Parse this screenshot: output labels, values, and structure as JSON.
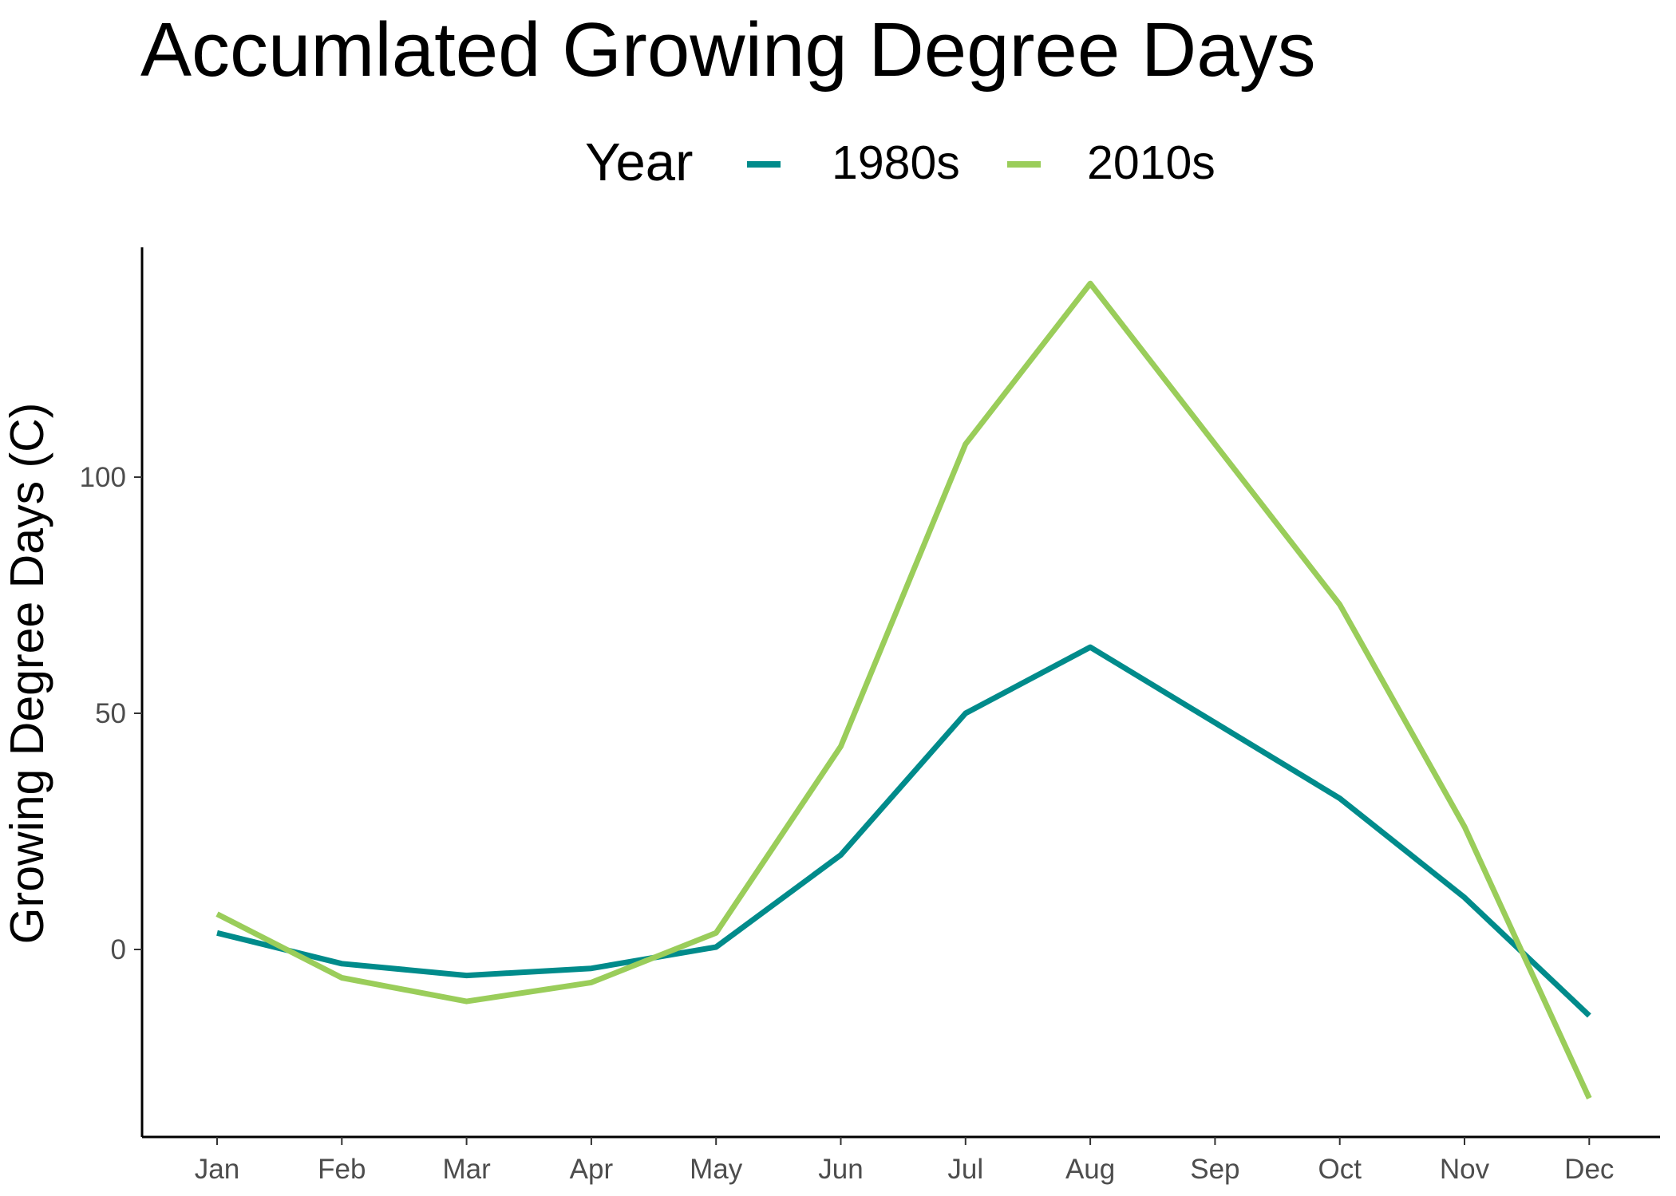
{
  "chart_data": {
    "type": "line",
    "title": "Accumlated Growing Degree Days",
    "xlabel": "",
    "ylabel": "Growing Degree Days (C)",
    "categories": [
      "Jan",
      "Feb",
      "Mar",
      "Apr",
      "May",
      "Jun",
      "Jul",
      "Aug",
      "Sep",
      "Oct",
      "Nov",
      "Dec"
    ],
    "ylim": [
      -38,
      149
    ],
    "yticks": [
      0,
      50,
      100
    ],
    "grid": false,
    "legend": {
      "title": "Year",
      "position": "top"
    },
    "series": [
      {
        "name": "1980s",
        "color": "#008b8b",
        "values": [
          3.5,
          -3,
          -5.5,
          -4,
          0.5,
          20,
          50,
          64,
          48,
          32,
          11,
          -14
        ]
      },
      {
        "name": "2010s",
        "color": "#9acd5a",
        "values": [
          7.5,
          -6,
          -11,
          -7,
          3.5,
          43,
          107,
          141,
          107,
          73,
          26,
          -31.5
        ]
      }
    ]
  }
}
